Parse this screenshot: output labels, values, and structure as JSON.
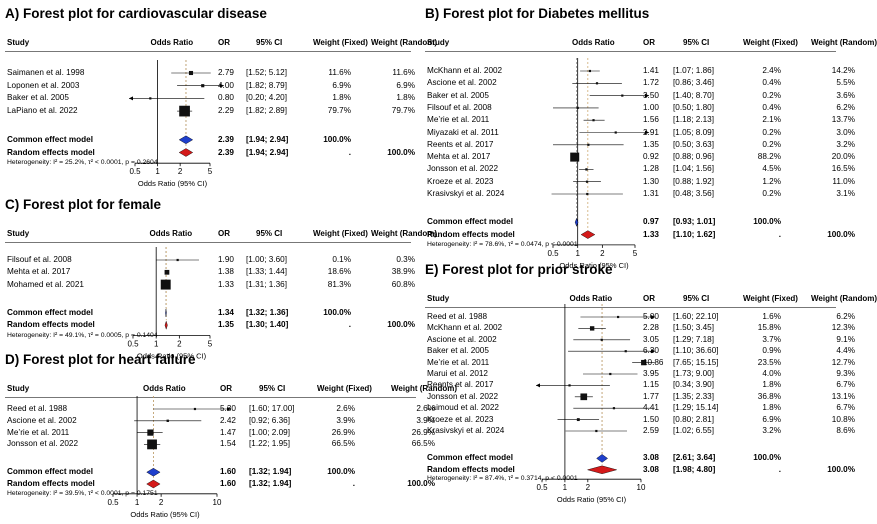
{
  "columns": {
    "study": "Study",
    "odds_ratio": "Odds Ratio",
    "or": "OR",
    "ci": "95% CI",
    "wf": "Weight (Fixed)",
    "wr": "Weight (Random)"
  },
  "chart_data": [
    {
      "type": "forest",
      "title": "A) Forest plot for cardiovascular disease",
      "xlabel": "Odds Ratio (95% CI)",
      "xticks": [
        0.5,
        1,
        2,
        5
      ],
      "xlim": [
        0.5,
        5
      ],
      "studies": [
        {
          "study": "Saimanen et al. 1998",
          "or": "2.79",
          "ci": "[1.52; 5.12]",
          "wf": "11.6%",
          "wr": "11.6%",
          "v": 2.79,
          "lo": 1.52,
          "hi": 5.12,
          "w": 11.6
        },
        {
          "study": "Loponen et al. 2003",
          "or": "4.00",
          "ci": "[1.82; 8.79]",
          "wf": "6.9%",
          "wr": "6.9%",
          "v": 4.0,
          "lo": 1.82,
          "hi": 8.79,
          "w": 6.9
        },
        {
          "study": "Baker et al. 2005",
          "or": "0.80",
          "ci": "[0.20; 4.20]",
          "wf": "1.8%",
          "wr": "1.8%",
          "v": 0.8,
          "lo": 0.2,
          "hi": 4.2,
          "w": 1.8
        },
        {
          "study": "LaPiano et al. 2022",
          "or": "2.29",
          "ci": "[1.82; 2.89]",
          "wf": "79.7%",
          "wr": "79.7%",
          "v": 2.29,
          "lo": 1.82,
          "hi": 2.89,
          "w": 79.7
        }
      ],
      "common": {
        "label": "Common effect model",
        "or": "2.39",
        "ci": "[1.94; 2.94]",
        "wf": "100.0%",
        "wr": "",
        "v": 2.39,
        "lo": 1.94,
        "hi": 2.94
      },
      "random": {
        "label": "Random effects model",
        "or": "2.39",
        "ci": "[1.94; 2.94]",
        "wf": ".",
        "wr": "100.0%",
        "v": 2.39,
        "lo": 1.94,
        "hi": 2.94
      },
      "heterogeneity": "Heterogeneity: I² = 25.2%, τ² < 0.0001, p = 0.2604"
    },
    {
      "type": "forest",
      "title": "B) Forest plot for Diabetes mellitus",
      "xlabel": "Odds Ratio (95% CI)",
      "xticks": [
        0.5,
        1,
        2,
        5
      ],
      "xlim": [
        0.5,
        5
      ],
      "studies": [
        {
          "study": "McKhann et al. 2002",
          "or": "1.41",
          "ci": "[1.07; 1.86]",
          "wf": "2.4%",
          "wr": "14.2%",
          "v": 1.41,
          "lo": 1.07,
          "hi": 1.86,
          "w": 2.4
        },
        {
          "study": "Ascione et al. 2002",
          "or": "1.72",
          "ci": "[0.86; 3.46]",
          "wf": "0.4%",
          "wr": "5.5%",
          "v": 1.72,
          "lo": 0.86,
          "hi": 3.46,
          "w": 0.4
        },
        {
          "study": "Baker et al. 2005",
          "or": "3.50",
          "ci": "[1.40; 8.70]",
          "wf": "0.2%",
          "wr": "3.6%",
          "v": 3.5,
          "lo": 1.4,
          "hi": 8.7,
          "w": 0.2
        },
        {
          "study": "Filsouf et al. 2008",
          "or": "1.00",
          "ci": "[0.50; 1.80]",
          "wf": "0.4%",
          "wr": "6.2%",
          "v": 1.0,
          "lo": 0.5,
          "hi": 1.8,
          "w": 0.4
        },
        {
          "study": "Me’rie et al. 2011",
          "or": "1.56",
          "ci": "[1.18; 2.13]",
          "wf": "2.1%",
          "wr": "13.7%",
          "v": 1.56,
          "lo": 1.18,
          "hi": 2.13,
          "w": 2.1
        },
        {
          "study": "Miyazaki et al. 2011",
          "or": "2.91",
          "ci": "[1.05; 8.09]",
          "wf": "0.2%",
          "wr": "3.0%",
          "v": 2.91,
          "lo": 1.05,
          "hi": 8.09,
          "w": 0.2
        },
        {
          "study": "Reents et al. 2017",
          "or": "1.35",
          "ci": "[0.50; 3.63]",
          "wf": "0.2%",
          "wr": "3.2%",
          "v": 1.35,
          "lo": 0.5,
          "hi": 3.63,
          "w": 0.2
        },
        {
          "study": "Mehta et al. 2017",
          "or": "0.92",
          "ci": "[0.88; 0.96]",
          "wf": "88.2%",
          "wr": "20.0%",
          "v": 0.92,
          "lo": 0.88,
          "hi": 0.96,
          "w": 88.2
        },
        {
          "study": "Jonsson et al. 2022",
          "or": "1.28",
          "ci": "[1.04; 1.56]",
          "wf": "4.5%",
          "wr": "16.5%",
          "v": 1.28,
          "lo": 1.04,
          "hi": 1.56,
          "w": 4.5
        },
        {
          "study": "Kroeze et al. 2023",
          "or": "1.30",
          "ci": "[0.88; 1.92]",
          "wf": "1.2%",
          "wr": "11.0%",
          "v": 1.3,
          "lo": 0.88,
          "hi": 1.92,
          "w": 1.2
        },
        {
          "study": "Krasivskyi et al. 2024",
          "or": "1.31",
          "ci": "[0.48; 3.56]",
          "wf": "0.2%",
          "wr": "3.1%",
          "v": 1.31,
          "lo": 0.48,
          "hi": 3.56,
          "w": 0.2
        }
      ],
      "common": {
        "label": "Common effect model",
        "or": "0.97",
        "ci": "[0.93; 1.01]",
        "wf": "100.0%",
        "wr": "",
        "v": 0.97,
        "lo": 0.93,
        "hi": 1.01
      },
      "random": {
        "label": "Random effects model",
        "or": "1.33",
        "ci": "[1.10; 1.62]",
        "wf": ".",
        "wr": "100.0%",
        "v": 1.33,
        "lo": 1.1,
        "hi": 1.62
      },
      "heterogeneity": "Heterogeneity: I² = 78.6%, τ² = 0.0474, p < 0.0001"
    },
    {
      "type": "forest",
      "title": "C) Forest plot for female",
      "xlabel": "Odds Ratio (95% CI)",
      "xticks": [
        0.5,
        1,
        2,
        5
      ],
      "xlim": [
        0.5,
        5
      ],
      "studies": [
        {
          "study": "Filsouf et al. 2008",
          "or": "1.90",
          "ci": "[1.00; 3.60]",
          "wf": "0.1%",
          "wr": "0.3%",
          "v": 1.9,
          "lo": 1.0,
          "hi": 3.6,
          "w": 0.1
        },
        {
          "study": "Mehta et al. 2017",
          "or": "1.38",
          "ci": "[1.33; 1.44]",
          "wf": "18.6%",
          "wr": "38.9%",
          "v": 1.38,
          "lo": 1.33,
          "hi": 1.44,
          "w": 18.6
        },
        {
          "study": "Mohamed et al. 2021",
          "or": "1.33",
          "ci": "[1.31; 1.36]",
          "wf": "81.3%",
          "wr": "60.8%",
          "v": 1.33,
          "lo": 1.31,
          "hi": 1.36,
          "w": 81.3
        }
      ],
      "common": {
        "label": "Common effect model",
        "or": "1.34",
        "ci": "[1.32; 1.36]",
        "wf": "100.0%",
        "wr": "",
        "v": 1.34,
        "lo": 1.32,
        "hi": 1.36
      },
      "random": {
        "label": "Random effects model",
        "or": "1.35",
        "ci": "[1.30; 1.40]",
        "wf": ".",
        "wr": "100.0%",
        "v": 1.35,
        "lo": 1.3,
        "hi": 1.4
      },
      "heterogeneity": "Heterogeneity: I² = 49.1%, τ² = 0.0005, p = 0.1404"
    },
    {
      "type": "forest",
      "title": "D) Forest plot for heart failure",
      "xlabel": "Odds Ratio (95% CI)",
      "xticks": [
        0.5,
        1,
        2,
        10
      ],
      "xlim": [
        0.5,
        10
      ],
      "studies": [
        {
          "study": "Reed et al. 1988",
          "or": "5.30",
          "ci": "[1.60; 17.00]",
          "wf": "2.6%",
          "wr": "2.6%",
          "v": 5.3,
          "lo": 1.6,
          "hi": 17.0,
          "w": 2.6
        },
        {
          "study": "Ascione et al. 2002",
          "or": "2.42",
          "ci": "[0.92; 6.36]",
          "wf": "3.9%",
          "wr": "3.9%",
          "v": 2.42,
          "lo": 0.92,
          "hi": 6.36,
          "w": 3.9
        },
        {
          "study": "Me’rie et al. 2011",
          "or": "1.47",
          "ci": "[1.00; 2.09]",
          "wf": "26.9%",
          "wr": "26.9%",
          "v": 1.47,
          "lo": 1.0,
          "hi": 2.09,
          "w": 26.9
        },
        {
          "study": "Jonsson et al. 2022",
          "or": "1.54",
          "ci": "[1.22; 1.95]",
          "wf": "66.5%",
          "wr": "66.5%",
          "v": 1.54,
          "lo": 1.22,
          "hi": 1.95,
          "w": 66.5
        }
      ],
      "common": {
        "label": "Common effect model",
        "or": "1.60",
        "ci": "[1.32; 1.94]",
        "wf": "100.0%",
        "wr": "",
        "v": 1.6,
        "lo": 1.32,
        "hi": 1.94
      },
      "random": {
        "label": "Random effects model",
        "or": "1.60",
        "ci": "[1.32; 1.94]",
        "wf": ".",
        "wr": "100.0%",
        "v": 1.6,
        "lo": 1.32,
        "hi": 1.94
      },
      "heterogeneity": "Heterogeneity: I² = 39.5%, τ² < 0.0001, p = 0.1751"
    },
    {
      "type": "forest",
      "title": "E) Forest plot for prior stroke",
      "xlabel": "Odds Ratio (95% CI)",
      "xticks": [
        0.5,
        1,
        2,
        10
      ],
      "xlim": [
        0.5,
        10
      ],
      "studies": [
        {
          "study": "Reed et al. 1988",
          "or": "5.00",
          "ci": "[1.60; 22.10]",
          "wf": "1.6%",
          "wr": "6.2%",
          "v": 5.0,
          "lo": 1.6,
          "hi": 22.1,
          "w": 1.6
        },
        {
          "study": "McKhann et al. 2002",
          "or": "2.28",
          "ci": "[1.50; 3.45]",
          "wf": "15.8%",
          "wr": "12.3%",
          "v": 2.28,
          "lo": 1.5,
          "hi": 3.45,
          "w": 15.8
        },
        {
          "study": "Ascione et al. 2002",
          "or": "3.05",
          "ci": "[1.29; 7.18]",
          "wf": "3.7%",
          "wr": "9.1%",
          "v": 3.05,
          "lo": 1.29,
          "hi": 7.18,
          "w": 3.7
        },
        {
          "study": "Baker et al. 2005",
          "or": "6.30",
          "ci": "[1.10; 36.60]",
          "wf": "0.9%",
          "wr": "4.4%",
          "v": 6.3,
          "lo": 1.1,
          "hi": 36.6,
          "w": 0.9
        },
        {
          "study": "Me’rie et al. 2011",
          "or": "10.86",
          "ci": "[7.65; 15.15]",
          "wf": "23.5%",
          "wr": "12.7%",
          "v": 10.86,
          "lo": 7.65,
          "hi": 15.15,
          "w": 23.5
        },
        {
          "study": "Marui et al. 2012",
          "or": "3.95",
          "ci": "[1.73; 9.00]",
          "wf": "4.0%",
          "wr": "9.3%",
          "v": 3.95,
          "lo": 1.73,
          "hi": 9.0,
          "w": 4.0
        },
        {
          "study": "Reents et al. 2017",
          "or": "1.15",
          "ci": "[0.34; 3.90]",
          "wf": "1.8%",
          "wr": "6.7%",
          "v": 1.15,
          "lo": 0.34,
          "hi": 3.9,
          "w": 1.8
        },
        {
          "study": "Jonsson et al. 2022",
          "or": "1.77",
          "ci": "[1.35; 2.33]",
          "wf": "36.8%",
          "wr": "13.1%",
          "v": 1.77,
          "lo": 1.35,
          "hi": 2.33,
          "w": 36.8
        },
        {
          "study": "Laimoud et al. 2022",
          "or": "4.41",
          "ci": "[1.29; 15.14]",
          "wf": "1.8%",
          "wr": "6.7%",
          "v": 4.41,
          "lo": 1.29,
          "hi": 15.14,
          "w": 1.8
        },
        {
          "study": "Kroeze et al. 2023",
          "or": "1.50",
          "ci": "[0.80; 2.81]",
          "wf": "6.9%",
          "wr": "10.8%",
          "v": 1.5,
          "lo": 0.8,
          "hi": 2.81,
          "w": 6.9
        },
        {
          "study": "Krasivskyi et al. 2024",
          "or": "2.59",
          "ci": "[1.02; 6.55]",
          "wf": "3.2%",
          "wr": "8.6%",
          "v": 2.59,
          "lo": 1.02,
          "hi": 6.55,
          "w": 3.2
        }
      ],
      "common": {
        "label": "Common effect model",
        "or": "3.08",
        "ci": "[2.61; 3.64]",
        "wf": "100.0%",
        "wr": "",
        "v": 3.08,
        "lo": 2.61,
        "hi": 3.64
      },
      "random": {
        "label": "Random effects model",
        "or": "3.08",
        "ci": "[1.98; 4.80]",
        "wf": ".",
        "wr": "100.0%",
        "v": 3.08,
        "lo": 1.98,
        "hi": 4.8
      },
      "heterogeneity": "Heterogeneity: I² = 87.4%, τ² = 0.3714, p < 0.0001"
    }
  ]
}
